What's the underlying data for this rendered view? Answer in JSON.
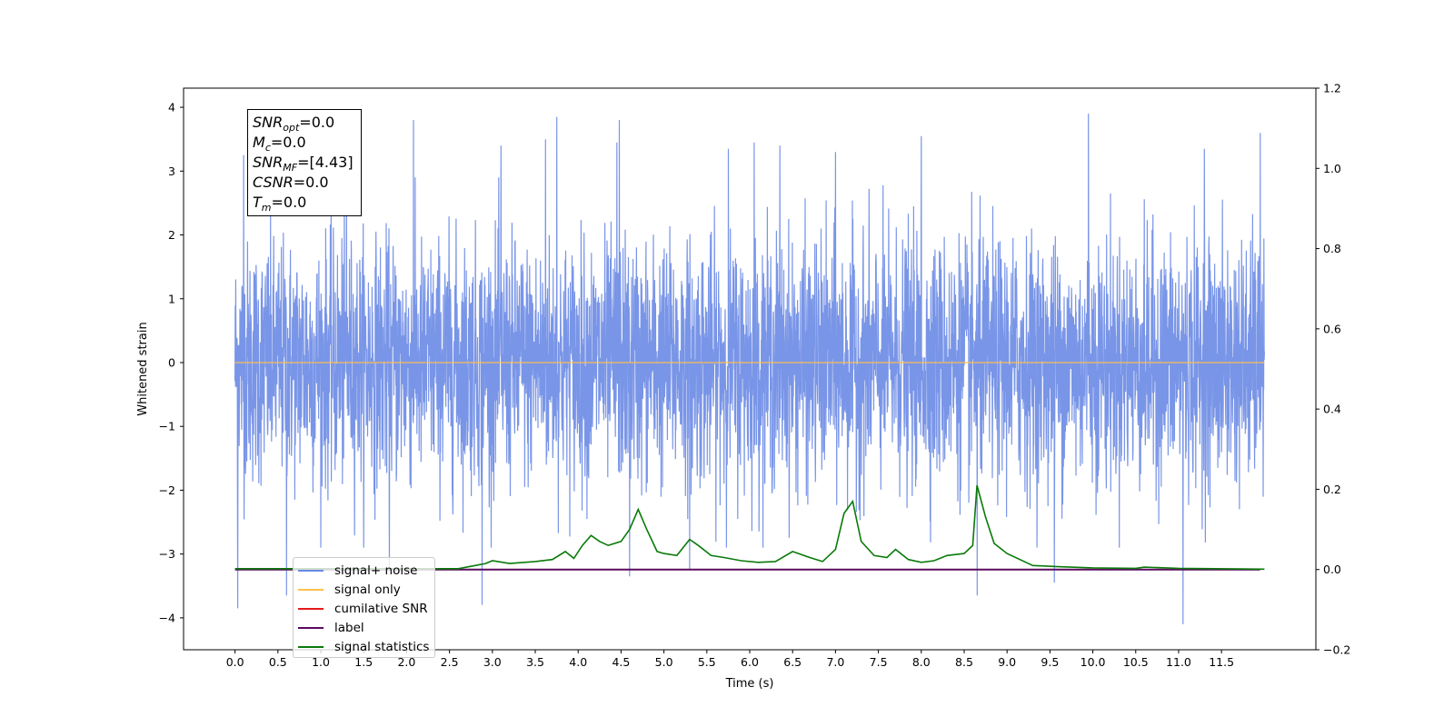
{
  "chart_data": {
    "type": "line",
    "xlabel": "Time (s)",
    "ylabel": "Whitened strain",
    "xlim": [
      -0.6,
      12.6
    ],
    "ylim": [
      -4.5,
      4.3
    ],
    "y2lim": [
      -0.2,
      1.2
    ],
    "x_ticks": [
      0.0,
      0.5,
      1.0,
      1.5,
      2.0,
      2.5,
      3.0,
      3.5,
      4.0,
      4.5,
      5.0,
      5.5,
      6.0,
      6.5,
      7.0,
      7.5,
      8.0,
      8.5,
      9.0,
      9.5,
      10.0,
      10.5,
      11.0,
      11.5
    ],
    "x_tick_labels": [
      "0.0",
      "0.5",
      "1.0",
      "1.5",
      "2.0",
      "2.5",
      "3.0",
      "3.5",
      "4.0",
      "4.5",
      "5.0",
      "5.5",
      "6.0",
      "6.5",
      "7.0",
      "7.5",
      "8.0",
      "8.5",
      "9.0",
      "9.5",
      "10.0",
      "10.5",
      "11.0",
      "11.5"
    ],
    "y_ticks": [
      -4,
      -3,
      -2,
      -1,
      0,
      1,
      2,
      3,
      4
    ],
    "y_tick_labels": [
      "−4",
      "−3",
      "−2",
      "−1",
      "0",
      "1",
      "2",
      "3",
      "4"
    ],
    "y2_ticks": [
      -0.2,
      0.0,
      0.2,
      0.4,
      0.6,
      0.8,
      1.0,
      1.2
    ],
    "y2_tick_labels": [
      "−0.2",
      "0.0",
      "0.2",
      "0.4",
      "0.6",
      "0.8",
      "1.0",
      "1.2"
    ],
    "noise": {
      "x_range": [
        0.0,
        12.0
      ],
      "typical_amplitude": 1.3,
      "peaks": [
        {
          "x": 0.03,
          "y": -3.85
        },
        {
          "x": 0.1,
          "y": 3.25
        },
        {
          "x": 0.6,
          "y": -3.65
        },
        {
          "x": 1.3,
          "y": 3.1
        },
        {
          "x": 1.8,
          "y": -3.2
        },
        {
          "x": 2.08,
          "y": 3.8
        },
        {
          "x": 2.88,
          "y": -3.8
        },
        {
          "x": 3.1,
          "y": 3.4
        },
        {
          "x": 3.62,
          "y": 3.5
        },
        {
          "x": 3.75,
          "y": 3.85
        },
        {
          "x": 4.45,
          "y": 3.45
        },
        {
          "x": 4.48,
          "y": 3.8
        },
        {
          "x": 4.6,
          "y": -3.35
        },
        {
          "x": 5.3,
          "y": -3.25
        },
        {
          "x": 5.75,
          "y": 3.35
        },
        {
          "x": 6.05,
          "y": 3.45
        },
        {
          "x": 6.35,
          "y": 3.4
        },
        {
          "x": 7.0,
          "y": 3.3
        },
        {
          "x": 8.0,
          "y": 3.55
        },
        {
          "x": 8.65,
          "y": -3.65
        },
        {
          "x": 9.55,
          "y": -3.45
        },
        {
          "x": 9.95,
          "y": 3.9
        },
        {
          "x": 11.05,
          "y": -4.1
        },
        {
          "x": 11.3,
          "y": 3.35
        },
        {
          "x": 11.95,
          "y": 3.6
        }
      ]
    },
    "signal_statistics": {
      "x": [
        0.0,
        2.6,
        2.8,
        2.92,
        3.0,
        3.2,
        3.5,
        3.7,
        3.85,
        3.95,
        4.05,
        4.15,
        4.25,
        4.35,
        4.5,
        4.6,
        4.7,
        4.8,
        4.92,
        5.0,
        5.15,
        5.3,
        5.4,
        5.55,
        5.7,
        5.9,
        6.1,
        6.3,
        6.5,
        6.7,
        6.85,
        7.0,
        7.1,
        7.2,
        7.3,
        7.45,
        7.6,
        7.7,
        7.85,
        8.0,
        8.15,
        8.3,
        8.5,
        8.6,
        8.65,
        8.75,
        8.85,
        9.0,
        9.3,
        9.6,
        10.0,
        10.5,
        10.6,
        11.0,
        12.0
      ],
      "y": [
        0.002,
        0.002,
        0.01,
        0.015,
        0.022,
        0.015,
        0.02,
        0.025,
        0.045,
        0.028,
        0.06,
        0.085,
        0.07,
        0.06,
        0.07,
        0.1,
        0.15,
        0.1,
        0.045,
        0.04,
        0.035,
        0.075,
        0.06,
        0.035,
        0.03,
        0.022,
        0.018,
        0.02,
        0.045,
        0.03,
        0.02,
        0.05,
        0.14,
        0.17,
        0.07,
        0.035,
        0.03,
        0.05,
        0.025,
        0.018,
        0.022,
        0.035,
        0.04,
        0.06,
        0.21,
        0.13,
        0.065,
        0.04,
        0.01,
        0.007,
        0.004,
        0.003,
        0.006,
        0.003,
        0.001
      ]
    },
    "series": [
      {
        "name": "signal+ noise",
        "color": "#6a8ae4"
      },
      {
        "name": "signal only",
        "color": "#ffc04d"
      },
      {
        "name": "cumilative SNR",
        "color": "#e41a1c"
      },
      {
        "name": "label",
        "color": "#5b0a5e"
      },
      {
        "name": "signal statistics",
        "color": "#0a7a0a"
      }
    ],
    "legend_placement": "lower-left",
    "grid": false
  },
  "stats": {
    "snr_opt": {
      "base": "SNR",
      "sub": "opt",
      "value": "=0.0"
    },
    "mc": {
      "base": "M",
      "sub": "c",
      "value": "=0.0"
    },
    "snr_mf": {
      "base": "SNR",
      "sub": "MF",
      "value": "=[4.43]"
    },
    "csnr": {
      "base": "CSNR",
      "sub": "",
      "value": "=0.0"
    },
    "tm": {
      "base": "T",
      "sub": "m",
      "value": "=0.0"
    }
  },
  "legend": {
    "items": [
      "signal+ noise",
      "signal only",
      "cumilative SNR",
      "label",
      "signal statistics"
    ],
    "colors": [
      "#6a8ae4",
      "#ffc04d",
      "#e41a1c",
      "#5b0a5e",
      "#0a7a0a"
    ]
  }
}
